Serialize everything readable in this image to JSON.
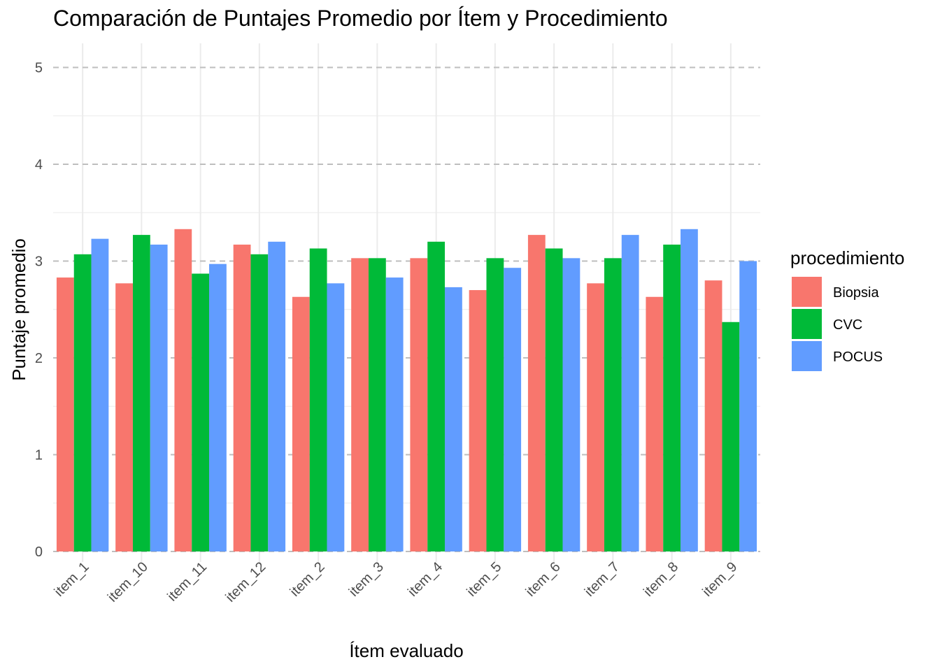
{
  "chart_data": {
    "type": "bar",
    "title": "Comparación de Puntajes Promedio por Ítem y Procedimiento",
    "xlabel": "Ítem evaluado",
    "ylabel": "Puntaje promedio",
    "ylim": [
      0,
      5.2
    ],
    "yticks": [
      "0",
      "1",
      "2",
      "3",
      "4",
      "5"
    ],
    "grid": true,
    "legend_title": "procedimiento",
    "legend_position": "right",
    "categories": [
      "item_1",
      "item_10",
      "item_11",
      "item_12",
      "item_2",
      "item_3",
      "item_4",
      "item_5",
      "item_6",
      "item_7",
      "item_8",
      "item_9"
    ],
    "series": [
      {
        "name": "Biopsia",
        "color": "#F8766D",
        "values": [
          2.83,
          2.77,
          3.33,
          3.17,
          2.63,
          3.03,
          3.03,
          2.7,
          3.27,
          2.77,
          2.63,
          2.8
        ]
      },
      {
        "name": "CVC",
        "color": "#00BA38",
        "values": [
          3.07,
          3.27,
          2.87,
          3.07,
          3.13,
          3.03,
          3.2,
          3.03,
          3.13,
          3.03,
          3.17,
          2.37
        ]
      },
      {
        "name": "POCUS",
        "color": "#619CFF",
        "values": [
          3.23,
          3.17,
          2.97,
          3.2,
          2.77,
          2.83,
          2.73,
          2.93,
          3.03,
          3.27,
          3.33,
          3.0
        ]
      }
    ]
  }
}
